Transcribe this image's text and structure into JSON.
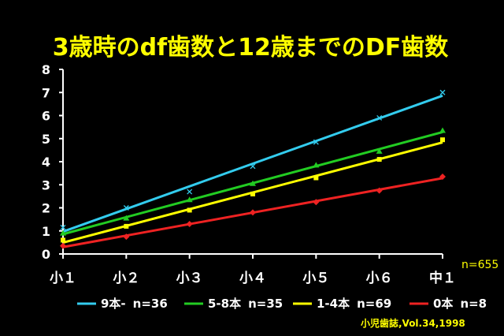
{
  "chart_data": {
    "type": "line",
    "title": "3歳時のdf歯数と12歳までのDF歯数",
    "categories": [
      "小１",
      "小２",
      "小３",
      "小４",
      "小５",
      "小６",
      "中１"
    ],
    "ylim": [
      0,
      8
    ],
    "yticks": [
      "0",
      "1",
      "2",
      "3",
      "4",
      "5",
      "6",
      "7",
      "8"
    ],
    "grid": false,
    "legend_position": "bottom",
    "series": [
      {
        "name": "9本-",
        "n_label": "n=36",
        "color": "#33ccee",
        "marker": "x",
        "values": [
          1.15,
          2.0,
          2.7,
          3.8,
          4.85,
          5.9,
          7.0
        ]
      },
      {
        "name": "5-8本",
        "n_label": "n=35",
        "color": "#22cc22",
        "marker": "triangle",
        "values": [
          0.9,
          1.55,
          2.35,
          3.05,
          3.85,
          4.45,
          5.35
        ]
      },
      {
        "name": "1-4本",
        "n_label": "n=69",
        "color": "#ffff00",
        "marker": "square",
        "values": [
          0.6,
          1.2,
          1.9,
          2.6,
          3.3,
          4.1,
          4.95
        ]
      },
      {
        "name": "0本",
        "n_label": "n=8",
        "color": "#ee2222",
        "marker": "diamond",
        "values": [
          0.35,
          0.75,
          1.3,
          1.8,
          2.25,
          2.75,
          3.35
        ]
      }
    ],
    "annotation": "n=655",
    "source": "小児歯誌,Vol.34,1998"
  }
}
